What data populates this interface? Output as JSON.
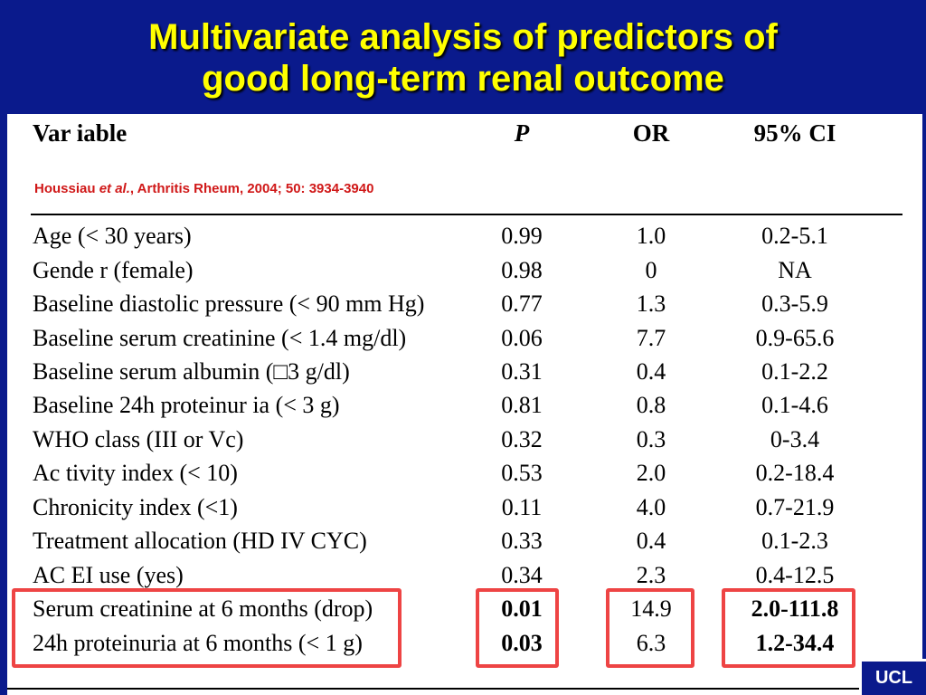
{
  "slide": {
    "title_line1": "Multivariate analysis of predictors of",
    "title_line2": "good long-term renal outcome",
    "badge": "UCL"
  },
  "citation": {
    "author": "Houssiau",
    "etal": "et al.",
    "source": ", Arthritis Rheum, 2004; 50: 3934-3940"
  },
  "table": {
    "headers": {
      "variable": "Var iable",
      "p": "P",
      "or": "OR",
      "ci": "95% CI"
    },
    "rows": [
      {
        "variable": "Age  (< 30 years)",
        "p": "0.99",
        "or": "1.0",
        "ci": "0.2-5.1"
      },
      {
        "variable": "Gende r (female)",
        "p": "0.98",
        "or": "0",
        "ci": "NA"
      },
      {
        "variable": "Baseline diastolic pressure (< 90 mm Hg)",
        "p": "0.77",
        "or": "1.3",
        "ci": "0.3-5.9"
      },
      {
        "variable": "Baseline serum creatinine (< 1.4 mg/dl)",
        "p": "0.06",
        "or": "7.7",
        "ci": "0.9-65.6"
      },
      {
        "variable": "Baseline serum albumin (□3 g/dl)",
        "p": "0.31",
        "or": "0.4",
        "ci": "0.1-2.2"
      },
      {
        "variable": "Baseline 24h proteinur ia (< 3  g)",
        "p": "0.81",
        "or": "0.8",
        "ci": "0.1-4.6"
      },
      {
        "variable": "WHO  class (III or Vc)",
        "p": "0.32",
        "or": "0.3",
        "ci": "0-3.4"
      },
      {
        "variable": "Ac tivity index (< 10)",
        "p": "0.53",
        "or": "2.0",
        "ci": "0.2-18.4"
      },
      {
        "variable": "Chronicity index (<1)",
        "p": "0.11",
        "or": "4.0",
        "ci": "0.7-21.9"
      },
      {
        "variable": "Treatment allocation (HD IV CYC)",
        "p": "0.33",
        "or": "0.4",
        "ci": "0.1-2.3"
      },
      {
        "variable": "AC EI use (yes)",
        "p": "0.34",
        "or": "2.3",
        "ci": "0.4-12.5"
      },
      {
        "variable": "Serum creatinine at 6 months (drop)",
        "p": "0.01",
        "or": "14.9",
        "ci": "2.0-111.8"
      },
      {
        "variable": "24h proteinuria at 6 months (< 1 g)",
        "p": "0.03",
        "or": "6.3",
        "ci": "1.2-34.4"
      }
    ]
  },
  "colors": {
    "background": "#0a1a8c",
    "title": "#ffff00",
    "citation": "#d01818",
    "highlight": "#ee4444"
  }
}
